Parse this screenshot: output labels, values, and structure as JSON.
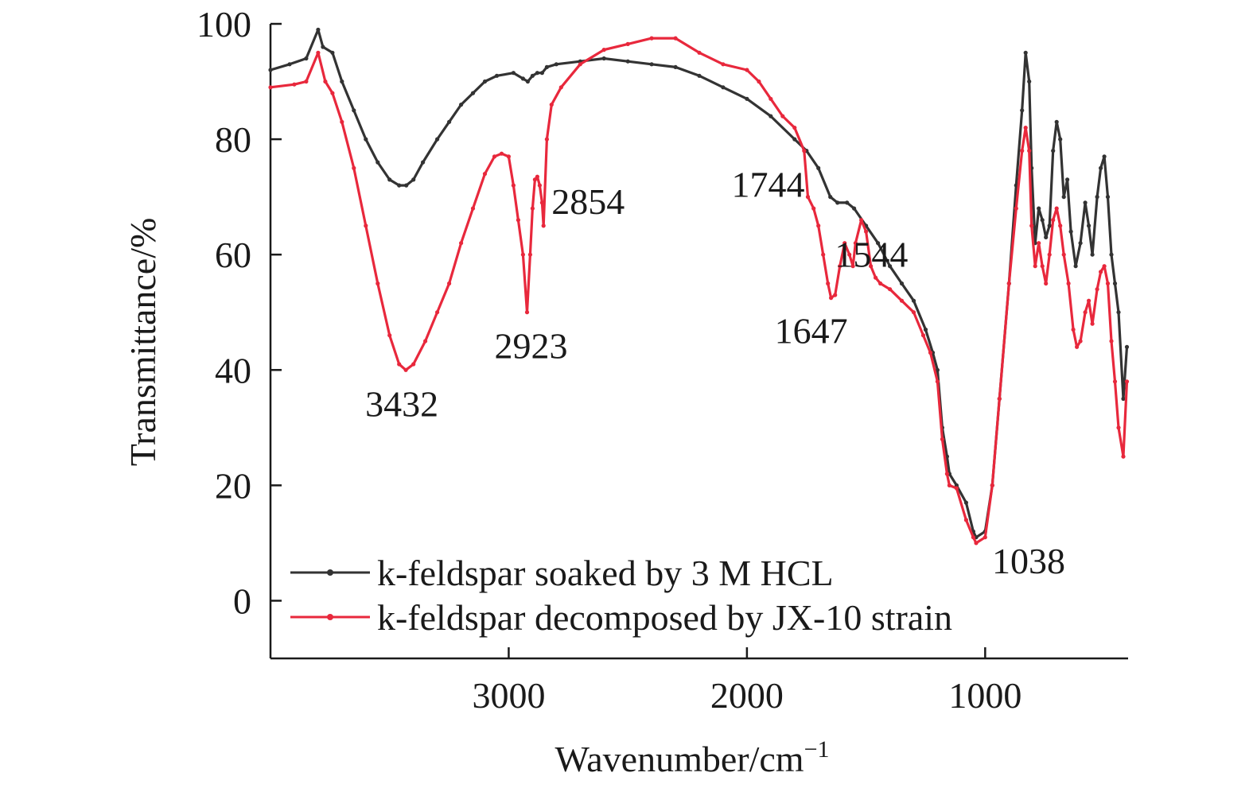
{
  "chart_data": {
    "type": "line",
    "title": "",
    "xlabel": "Wavenumber/cm",
    "xlabel_sup": "−1",
    "ylabel": "Transmittance/%",
    "xlim": [
      4000,
      400
    ],
    "x_reversed": true,
    "ylim": [
      -10,
      100
    ],
    "x_ticks": [
      3000,
      2000,
      1000
    ],
    "y_ticks": [
      0,
      20,
      40,
      60,
      80,
      100
    ],
    "grid": false,
    "legend_position": "bottom-left",
    "series": [
      {
        "name": "k-feldspar soaked by 3 M HCL",
        "color": "#333333",
        "points": [
          [
            4000,
            92
          ],
          [
            3920,
            93
          ],
          [
            3850,
            94
          ],
          [
            3800,
            99
          ],
          [
            3780,
            96
          ],
          [
            3740,
            95
          ],
          [
            3700,
            90
          ],
          [
            3650,
            85
          ],
          [
            3600,
            80
          ],
          [
            3550,
            76
          ],
          [
            3500,
            73
          ],
          [
            3460,
            72
          ],
          [
            3430,
            72
          ],
          [
            3400,
            73
          ],
          [
            3360,
            76
          ],
          [
            3300,
            80
          ],
          [
            3250,
            83
          ],
          [
            3200,
            86
          ],
          [
            3150,
            88
          ],
          [
            3100,
            90
          ],
          [
            3050,
            91
          ],
          [
            2980,
            91.5
          ],
          [
            2940,
            90.5
          ],
          [
            2920,
            90
          ],
          [
            2900,
            91
          ],
          [
            2880,
            91.5
          ],
          [
            2860,
            91.5
          ],
          [
            2840,
            92.5
          ],
          [
            2800,
            93
          ],
          [
            2700,
            93.5
          ],
          [
            2600,
            94
          ],
          [
            2500,
            93.5
          ],
          [
            2400,
            93
          ],
          [
            2300,
            92.5
          ],
          [
            2200,
            91
          ],
          [
            2100,
            89
          ],
          [
            2000,
            87
          ],
          [
            1900,
            84
          ],
          [
            1800,
            80
          ],
          [
            1750,
            78
          ],
          [
            1700,
            75
          ],
          [
            1650,
            70
          ],
          [
            1620,
            69
          ],
          [
            1580,
            69
          ],
          [
            1550,
            68
          ],
          [
            1500,
            65
          ],
          [
            1450,
            62
          ],
          [
            1400,
            58
          ],
          [
            1350,
            55
          ],
          [
            1300,
            52
          ],
          [
            1250,
            47
          ],
          [
            1220,
            43
          ],
          [
            1200,
            40
          ],
          [
            1180,
            30
          ],
          [
            1160,
            25
          ],
          [
            1150,
            22
          ],
          [
            1120,
            20
          ],
          [
            1080,
            17
          ],
          [
            1050,
            12
          ],
          [
            1038,
            11
          ],
          [
            1000,
            12
          ],
          [
            970,
            20
          ],
          [
            940,
            35
          ],
          [
            900,
            55
          ],
          [
            870,
            72
          ],
          [
            845,
            85
          ],
          [
            830,
            95
          ],
          [
            815,
            90
          ],
          [
            805,
            75
          ],
          [
            790,
            62
          ],
          [
            775,
            68
          ],
          [
            760,
            66
          ],
          [
            745,
            63
          ],
          [
            730,
            65
          ],
          [
            715,
            78
          ],
          [
            700,
            83
          ],
          [
            685,
            80
          ],
          [
            670,
            70
          ],
          [
            655,
            73
          ],
          [
            640,
            64
          ],
          [
            620,
            58
          ],
          [
            600,
            62
          ],
          [
            580,
            69
          ],
          [
            565,
            65
          ],
          [
            550,
            60
          ],
          [
            530,
            70
          ],
          [
            515,
            75
          ],
          [
            500,
            77
          ],
          [
            485,
            70
          ],
          [
            470,
            60
          ],
          [
            455,
            55
          ],
          [
            440,
            50
          ],
          [
            420,
            35
          ],
          [
            405,
            44
          ]
        ]
      },
      {
        "name": "k-feldspar decomposed by JX-10 strain",
        "color": "#e8283c",
        "points": [
          [
            4000,
            89
          ],
          [
            3900,
            89.5
          ],
          [
            3850,
            90
          ],
          [
            3800,
            95
          ],
          [
            3770,
            90
          ],
          [
            3740,
            88
          ],
          [
            3700,
            83
          ],
          [
            3650,
            75
          ],
          [
            3600,
            65
          ],
          [
            3550,
            55
          ],
          [
            3500,
            46
          ],
          [
            3460,
            41
          ],
          [
            3432,
            40
          ],
          [
            3400,
            41
          ],
          [
            3350,
            45
          ],
          [
            3300,
            50
          ],
          [
            3250,
            55
          ],
          [
            3200,
            62
          ],
          [
            3150,
            68
          ],
          [
            3100,
            74
          ],
          [
            3060,
            77
          ],
          [
            3030,
            77.5
          ],
          [
            3000,
            77
          ],
          [
            2980,
            72
          ],
          [
            2960,
            66
          ],
          [
            2940,
            60
          ],
          [
            2923,
            50
          ],
          [
            2910,
            60
          ],
          [
            2900,
            68
          ],
          [
            2890,
            73
          ],
          [
            2880,
            73.5
          ],
          [
            2870,
            72
          ],
          [
            2860,
            69
          ],
          [
            2854,
            65
          ],
          [
            2840,
            80
          ],
          [
            2820,
            86
          ],
          [
            2780,
            89
          ],
          [
            2700,
            93
          ],
          [
            2600,
            95.5
          ],
          [
            2500,
            96.5
          ],
          [
            2400,
            97.5
          ],
          [
            2300,
            97.5
          ],
          [
            2200,
            95
          ],
          [
            2100,
            93
          ],
          [
            2000,
            92
          ],
          [
            1950,
            90
          ],
          [
            1900,
            87
          ],
          [
            1850,
            84
          ],
          [
            1800,
            82
          ],
          [
            1760,
            78
          ],
          [
            1744,
            70
          ],
          [
            1720,
            68
          ],
          [
            1700,
            65
          ],
          [
            1680,
            60
          ],
          [
            1660,
            55
          ],
          [
            1647,
            52.5
          ],
          [
            1630,
            53
          ],
          [
            1610,
            58
          ],
          [
            1590,
            62
          ],
          [
            1570,
            60
          ],
          [
            1555,
            58
          ],
          [
            1544,
            62
          ],
          [
            1520,
            66
          ],
          [
            1500,
            64
          ],
          [
            1480,
            58
          ],
          [
            1460,
            56
          ],
          [
            1440,
            55
          ],
          [
            1400,
            54
          ],
          [
            1350,
            52
          ],
          [
            1300,
            50
          ],
          [
            1260,
            46
          ],
          [
            1230,
            43
          ],
          [
            1200,
            38
          ],
          [
            1180,
            28
          ],
          [
            1160,
            22
          ],
          [
            1150,
            20
          ],
          [
            1120,
            19.5
          ],
          [
            1080,
            14
          ],
          [
            1050,
            11
          ],
          [
            1038,
            10
          ],
          [
            1000,
            11
          ],
          [
            970,
            20
          ],
          [
            940,
            35
          ],
          [
            900,
            55
          ],
          [
            870,
            68
          ],
          [
            845,
            78
          ],
          [
            830,
            82
          ],
          [
            815,
            78
          ],
          [
            805,
            65
          ],
          [
            790,
            58
          ],
          [
            775,
            62
          ],
          [
            760,
            58
          ],
          [
            745,
            55
          ],
          [
            730,
            60
          ],
          [
            715,
            66
          ],
          [
            700,
            68
          ],
          [
            685,
            65
          ],
          [
            670,
            60
          ],
          [
            650,
            55
          ],
          [
            630,
            47
          ],
          [
            615,
            44
          ],
          [
            600,
            45
          ],
          [
            580,
            50
          ],
          [
            565,
            52
          ],
          [
            550,
            48
          ],
          [
            530,
            54
          ],
          [
            515,
            57
          ],
          [
            500,
            58
          ],
          [
            485,
            55
          ],
          [
            470,
            45
          ],
          [
            455,
            38
          ],
          [
            440,
            30
          ],
          [
            420,
            25
          ],
          [
            405,
            38
          ]
        ]
      }
    ],
    "annotations": [
      {
        "text": "3432",
        "x": 3432,
        "y": 40
      },
      {
        "text": "2923",
        "x": 2923,
        "y": 50
      },
      {
        "text": "2854",
        "x": 2854,
        "y": 65
      },
      {
        "text": "1744",
        "x": 1744,
        "y": 70
      },
      {
        "text": "1647",
        "x": 1647,
        "y": 52.5
      },
      {
        "text": "1544",
        "x": 1544,
        "y": 62
      },
      {
        "text": "1038",
        "x": 1038,
        "y": 10
      }
    ]
  }
}
